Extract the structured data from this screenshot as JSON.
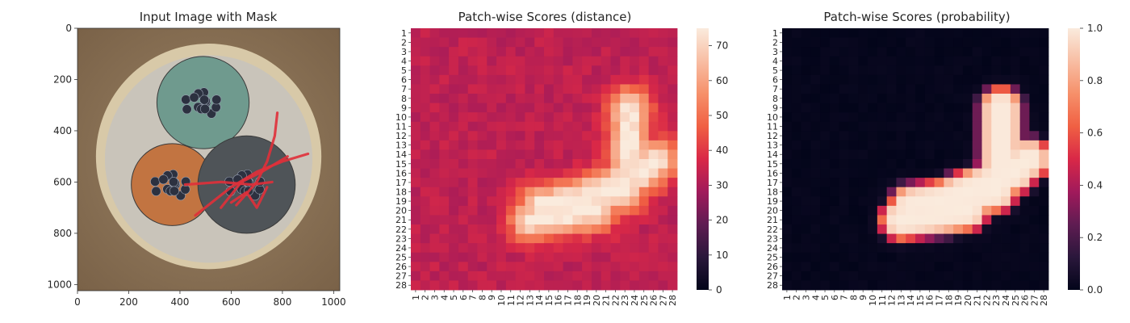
{
  "chart_data": [
    {
      "type": "image",
      "title": "Input Image with Mask",
      "xticks": [
        0,
        200,
        400,
        600,
        800,
        1000
      ],
      "yticks": [
        0,
        200,
        400,
        600,
        800,
        1000
      ],
      "xlim": [
        0,
        1024
      ],
      "ylim": [
        1024,
        0
      ],
      "scene": {
        "background": "#8c7458",
        "outer_rim": "#d8c9a8",
        "inner_fill": "#c9c4ba",
        "cables": [
          {
            "name": "top",
            "color": "#6f9a8e",
            "cx": 490,
            "cy": 290,
            "r": 180
          },
          {
            "name": "left",
            "color": "#c27441",
            "cx": 370,
            "cy": 610,
            "r": 160
          },
          {
            "name": "right",
            "color": "#4f5458",
            "cx": 660,
            "cy": 610,
            "r": 190
          }
        ],
        "mask_color": "#e0303a"
      }
    },
    {
      "type": "heatmap",
      "title": "Patch-wise Scores (distance)",
      "xticklabels": [
        "1",
        "2",
        "3",
        "4",
        "5",
        "6",
        "7",
        "8",
        "9",
        "10",
        "11",
        "12",
        "13",
        "14",
        "15",
        "16",
        "17",
        "18",
        "19",
        "20",
        "21",
        "22",
        "23",
        "24",
        "25",
        "26",
        "27",
        "28"
      ],
      "yticklabels": [
        "1",
        "2",
        "3",
        "4",
        "5",
        "6",
        "7",
        "8",
        "9",
        "10",
        "11",
        "12",
        "13",
        "14",
        "15",
        "16",
        "17",
        "18",
        "19",
        "20",
        "21",
        "22",
        "23",
        "24",
        "25",
        "26",
        "27",
        "28"
      ],
      "colorbar": {
        "vmin": 0,
        "vmax": 75,
        "ticks": [
          0,
          10,
          20,
          30,
          40,
          50,
          60,
          70
        ]
      },
      "background_level": 30,
      "anomaly_peak": 73,
      "anomaly_region": "L-shaped band from row 9 col 23 down to rows 16-22 cols 12-27"
    },
    {
      "type": "heatmap",
      "title": "Patch-wise Scores (probability)",
      "xticklabels": [
        "1",
        "2",
        "3",
        "4",
        "5",
        "6",
        "7",
        "8",
        "9",
        "10",
        "11",
        "12",
        "13",
        "14",
        "15",
        "16",
        "17",
        "18",
        "19",
        "20",
        "21",
        "22",
        "23",
        "24",
        "25",
        "26",
        "27",
        "28"
      ],
      "yticklabels": [
        "1",
        "2",
        "3",
        "4",
        "5",
        "6",
        "7",
        "8",
        "9",
        "10",
        "11",
        "12",
        "13",
        "14",
        "15",
        "16",
        "17",
        "18",
        "19",
        "20",
        "21",
        "22",
        "23",
        "24",
        "25",
        "26",
        "27",
        "28"
      ],
      "colorbar": {
        "vmin": 0.0,
        "vmax": 1.0,
        "ticks": [
          "0.0",
          "0.2",
          "0.4",
          "0.6",
          "0.8",
          "1.0"
        ]
      },
      "background_level": 0.0,
      "anomaly_peak": 1.0
    }
  ]
}
